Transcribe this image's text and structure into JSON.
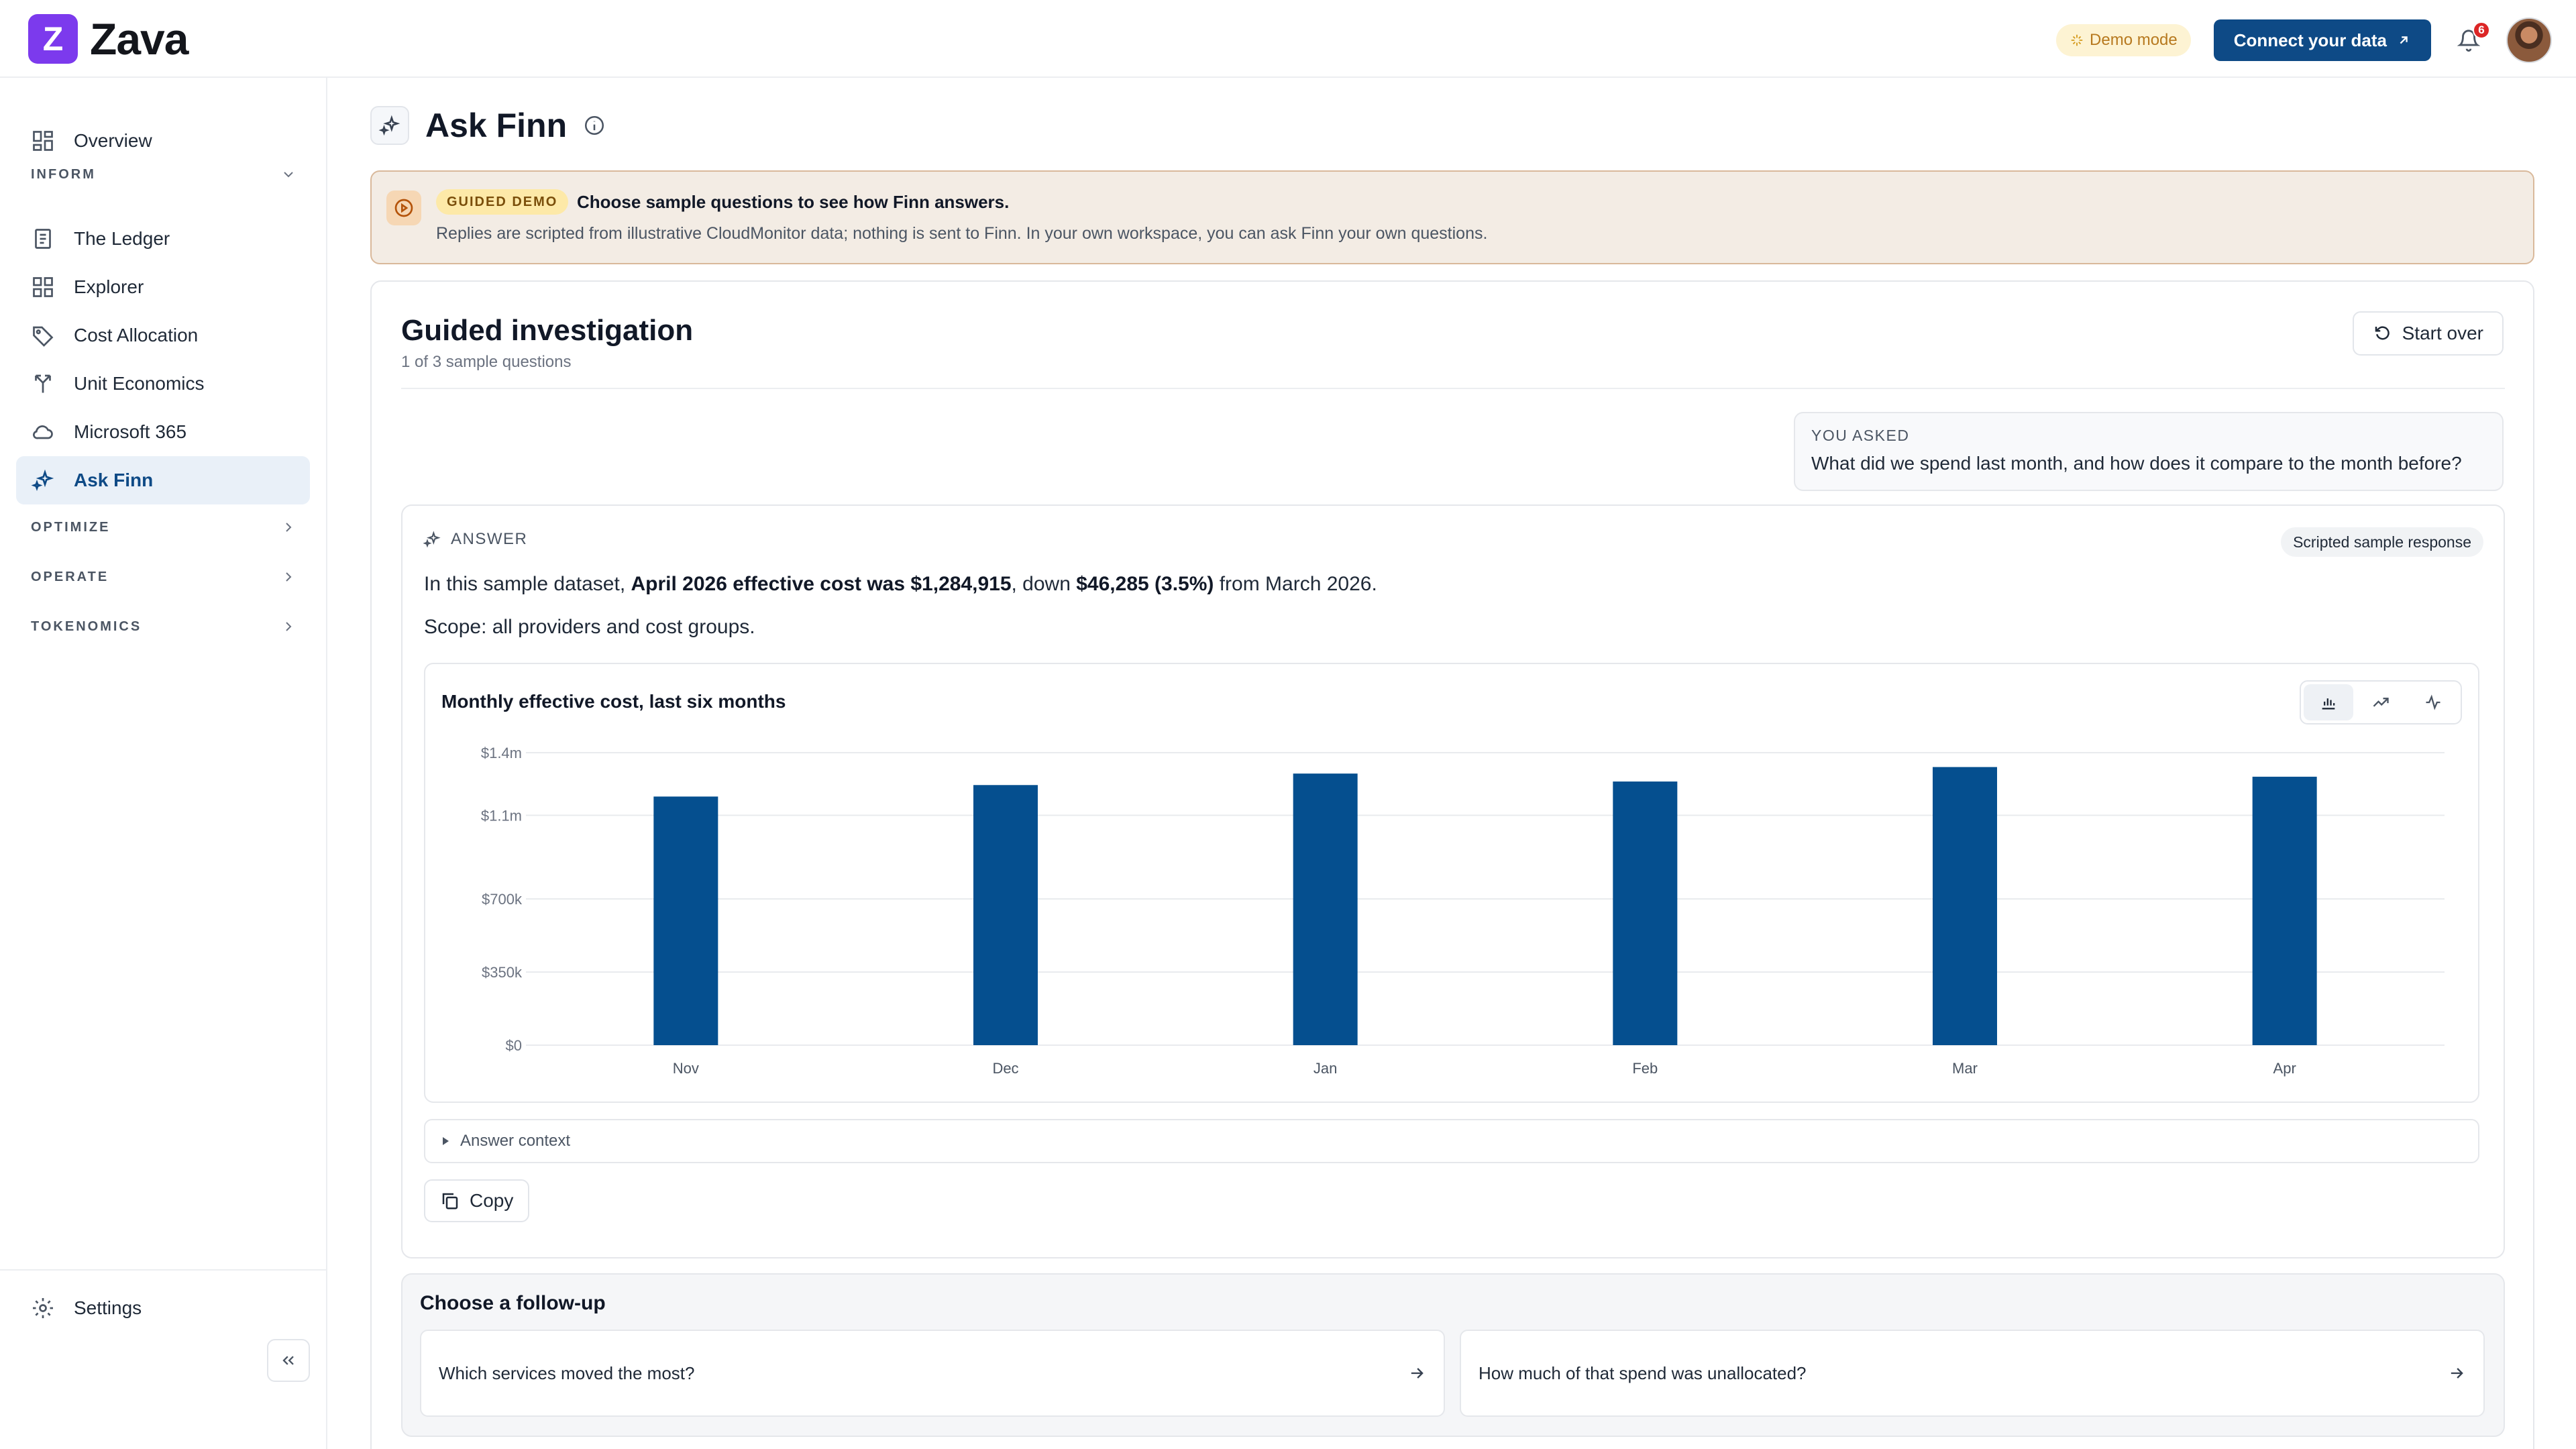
{
  "app": {
    "logo_letter": "Z",
    "name": "Zava"
  },
  "header": {
    "demo_mode": "Demo mode",
    "connect_label": "Connect your data",
    "notification_count": "6",
    "accent_color": "#0e4a86"
  },
  "sidebar": {
    "overview": "Overview",
    "inform_label": "INFORM",
    "items": [
      {
        "label": "The Ledger",
        "icon": "ledger-icon"
      },
      {
        "label": "Explorer",
        "icon": "grid-icon"
      },
      {
        "label": "Cost Allocation",
        "icon": "tag-icon"
      },
      {
        "label": "Unit Economics",
        "icon": "split-arrows-icon"
      },
      {
        "label": "Microsoft 365",
        "icon": "cloud-icon"
      },
      {
        "label": "Ask Finn",
        "icon": "sparkles-icon",
        "active": true
      }
    ],
    "sections": [
      "OPTIMIZE",
      "OPERATE",
      "TOKENOMICS"
    ],
    "settings": "Settings"
  },
  "page": {
    "title": "Ask Finn"
  },
  "banner": {
    "tag": "GUIDED DEMO",
    "title": "Choose sample questions to see how Finn answers.",
    "subtitle": "Replies are scripted from illustrative CloudMonitor data; nothing is sent to Finn. In your own workspace, you can ask Finn your own questions."
  },
  "investigation": {
    "title": "Guided investigation",
    "progress": "1 of 3 sample questions",
    "start_over": "Start over"
  },
  "question": {
    "label": "YOU ASKED",
    "text": "What did we spend last month, and how does it compare to the month before?"
  },
  "answer": {
    "label": "ANSWER",
    "pill": "Scripted sample response",
    "line_prefix": "In this sample dataset, ",
    "line_bold1": "April 2026 effective cost was $1,284,915",
    "line_mid": ", down ",
    "line_bold2": "$46,285 (3.5%)",
    "line_suffix": " from March 2026.",
    "scope": "Scope: all providers and cost groups.",
    "context_label": "Answer context",
    "copy_label": "Copy"
  },
  "chart_data": {
    "type": "bar",
    "title": "Monthly effective cost, last six months",
    "categories": [
      "Nov",
      "Dec",
      "Jan",
      "Feb",
      "Mar",
      "Apr"
    ],
    "values": [
      1190000,
      1245000,
      1300000,
      1262000,
      1331200,
      1284915
    ],
    "y_ticks": [
      0,
      350000,
      700000,
      1100000,
      1400000
    ],
    "y_tick_labels": [
      "$0",
      "$350k",
      "$700k",
      "$1.1m",
      "$1.4m"
    ],
    "ylim": [
      0,
      1400000
    ],
    "color": "#054f8f",
    "grid": true
  },
  "followup": {
    "title": "Choose a follow-up",
    "options": [
      "Which services moved the most?",
      "How much of that spend was unallocated?"
    ]
  }
}
